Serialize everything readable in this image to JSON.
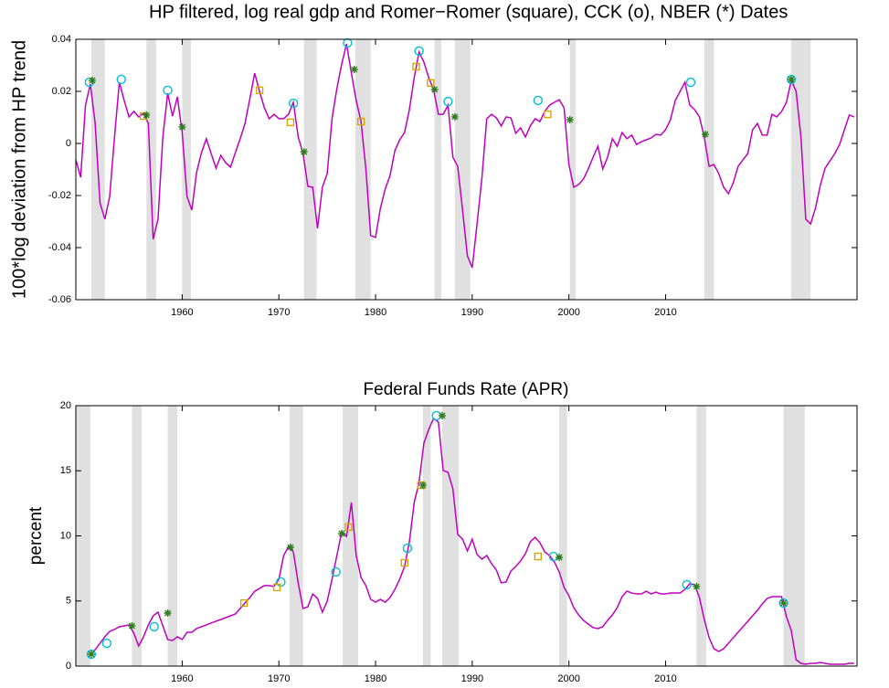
{
  "chart_data": [
    {
      "type": "line",
      "title": "HP filtered, log real gdp and Romer−Romer (square), CCK (o), NBER (*) Dates",
      "y_label": "100*log deviation from HP trend",
      "xlim": [
        1949.0,
        2029.8
      ],
      "xticks": [
        1960,
        1970,
        1980,
        1990,
        2000,
        2010
      ],
      "ylim": [
        -0.06,
        0.04
      ],
      "yticks": [
        -0.06,
        -0.04,
        -0.02,
        0,
        0.02,
        0.04
      ],
      "grid": false,
      "shade_color": "#e0e0e0",
      "shaded_spans": [
        [
          1950.6,
          1952.0
        ],
        [
          1956.3,
          1957.3
        ],
        [
          1960.0,
          1960.9
        ],
        [
          1972.6,
          1973.9
        ],
        [
          1977.9,
          1979.5
        ],
        [
          1986.1,
          1986.8
        ],
        [
          1988.2,
          1989.8
        ],
        [
          2000.1,
          2000.7
        ],
        [
          2014.0,
          2015.0
        ],
        [
          2023.0,
          2025.0
        ]
      ],
      "x": [
        1949,
        1949.5,
        1950,
        1950.5,
        1951,
        1951.5,
        1952,
        1952.5,
        1953,
        1953.5,
        1954,
        1954.5,
        1955,
        1955.5,
        1956,
        1956.5,
        1957,
        1957.5,
        1958,
        1958.5,
        1959,
        1959.5,
        1960,
        1960.5,
        1961,
        1961.5,
        1962,
        1962.5,
        1963,
        1963.5,
        1964,
        1964.5,
        1965,
        1965.5,
        1966,
        1966.5,
        1967,
        1967.5,
        1968,
        1968.5,
        1969,
        1969.5,
        1970,
        1970.5,
        1971,
        1971.5,
        1972,
        1972.5,
        1973,
        1973.5,
        1974,
        1974.5,
        1975,
        1975.5,
        1976,
        1976.5,
        1977,
        1977.5,
        1978,
        1978.5,
        1979,
        1979.5,
        1980,
        1980.5,
        1981,
        1981.5,
        1982,
        1982.5,
        1983,
        1983.5,
        1984,
        1984.5,
        1985,
        1985.5,
        1986,
        1986.5,
        1987,
        1987.5,
        1988,
        1988.5,
        1989,
        1989.5,
        1990,
        1990.5,
        1991,
        1991.5,
        1992,
        1992.5,
        1993,
        1993.5,
        1994,
        1994.5,
        1995,
        1995.5,
        1996,
        1996.5,
        1997,
        1997.5,
        1998,
        1998.5,
        1999,
        1999.5,
        2000,
        2000.5,
        2001,
        2001.5,
        2002,
        2002.5,
        2003,
        2003.5,
        2004,
        2004.5,
        2005,
        2005.5,
        2006,
        2006.5,
        2007,
        2007.5,
        2008,
        2008.5,
        2009,
        2009.5,
        2010,
        2010.5,
        2011,
        2011.5,
        2012,
        2012.5,
        2013,
        2013.5,
        2014,
        2014.5,
        2015,
        2015.5,
        2016,
        2016.5,
        2017,
        2017.5,
        2018,
        2018.5,
        2019,
        2019.5,
        2020,
        2020.5,
        2021,
        2021.5,
        2022,
        2022.5,
        2023,
        2023.5,
        2024,
        2024.5,
        2025,
        2025.5,
        2026,
        2026.5,
        2027,
        2027.5,
        2028,
        2028.5,
        2029,
        2029.5
      ],
      "series": [
        {
          "color": "#c000c0",
          "values": [
            -0.0063,
            -0.013,
            0.0147,
            0.0228,
            0.0077,
            -0.0228,
            -0.0291,
            -0.0204,
            0.0025,
            0.0235,
            0.0165,
            0.0102,
            0.0123,
            0.0102,
            0.0116,
            0.0077,
            -0.0368,
            -0.0291,
            0.0025,
            0.0193,
            0.0105,
            0.0179,
            0.0042,
            -0.0204,
            -0.0256,
            -0.0109,
            -0.0035,
            0.0018,
            -0.0039,
            -0.0095,
            -0.0046,
            -0.0074,
            -0.0091,
            -0.0035,
            0.0018,
            0.0077,
            0.0172,
            0.027,
            0.02,
            0.0137,
            0.0095,
            0.0112,
            0.0095,
            0.0095,
            0.0112,
            0.0158,
            0.0025,
            -0.0039,
            -0.0165,
            -0.0168,
            -0.0326,
            -0.0168,
            -0.0116,
            0.0095,
            0.0211,
            0.0305,
            0.0382,
            0.027,
            0.0165,
            0.0084,
            -0.0098,
            -0.0354,
            -0.0361,
            -0.0249,
            -0.0175,
            -0.0123,
            -0.0028,
            0.0014,
            0.0042,
            0.013,
            0.0253,
            0.0351,
            0.0312,
            0.0253,
            0.0207,
            0.0112,
            0.0112,
            0.0147,
            -0.0053,
            -0.0088,
            -0.0256,
            -0.0432,
            -0.0477,
            -0.0309,
            -0.0133,
            0.0095,
            0.0112,
            0.0098,
            0.0067,
            0.0102,
            0.0098,
            0.0039,
            0.006,
            0.0025,
            0.0067,
            0.0095,
            0.0084,
            0.0123,
            0.0147,
            0.0158,
            0.0168,
            0.0137,
            -0.0081,
            -0.0168,
            -0.0158,
            -0.0137,
            -0.0098,
            -0.0053,
            -0.0011,
            -0.0098,
            -0.0053,
            0.0018,
            -0.0011,
            0.0042,
            0.0018,
            0.0032,
            -0.0004,
            0.0007,
            0.0014,
            0.0021,
            0.0035,
            0.0032,
            0.0053,
            0.0091,
            0.0165,
            0.02,
            0.0235,
            0.0147,
            0.013,
            0.0102,
            0.0025,
            -0.0088,
            -0.0081,
            -0.0116,
            -0.0168,
            -0.0193,
            -0.0151,
            -0.0088,
            -0.0063,
            -0.0039,
            0.0053,
            0.0077,
            0.0032,
            0.0032,
            0.0112,
            0.0102,
            0.0123,
            0.0158,
            0.0242,
            0.02,
            0.0025,
            -0.0291,
            -0.0309,
            -0.0249,
            -0.0161,
            -0.0095,
            -0.0067,
            -0.0039,
            -0.0004,
            0.0053,
            0.0109,
            0.0102
          ]
        }
      ],
      "markers": [
        {
          "marker": "circle",
          "color": "#00bfd8",
          "x": [
            1950.4,
            1953.7,
            1958.5,
            1971.5,
            1977.1,
            1984.5,
            1987.5,
            1996.8,
            2012.6,
            2023.0
          ],
          "values": [
            0.0235,
            0.0246,
            0.0204,
            0.0154,
            0.0386,
            0.0355,
            0.0161,
            0.0165,
            0.0235,
            0.0246
          ]
        },
        {
          "marker": "square",
          "color": "#d4a800",
          "x": [
            1956.0,
            1968.0,
            1971.2,
            1978.5,
            1984.2,
            1985.7,
            1997.8
          ],
          "values": [
            0.0105,
            0.0204,
            0.0081,
            0.0084,
            0.0295,
            0.0232,
            0.0112
          ]
        },
        {
          "marker": "star",
          "color": "#2e7d1e",
          "x": [
            1950.7,
            1956.3,
            1960.0,
            1972.6,
            1977.8,
            1986.1,
            1988.2,
            2000.1,
            2014.1,
            2023.0
          ],
          "values": [
            0.0242,
            0.0109,
            0.0063,
            -0.0032,
            0.0284,
            0.0207,
            0.0102,
            0.0091,
            0.0035,
            0.0246
          ]
        }
      ]
    },
    {
      "type": "line",
      "title": "Federal Funds Rate (APR)",
      "y_label": "percent",
      "xlim": [
        1949.0,
        2029.8
      ],
      "xticks": [
        1960,
        1970,
        1980,
        1990,
        2000,
        2010
      ],
      "ylim": [
        0,
        20
      ],
      "yticks": [
        0,
        5,
        10,
        15,
        20
      ],
      "grid": false,
      "shade_color": "#e0e0e0",
      "shaded_spans": [
        [
          1949.0,
          1950.5
        ],
        [
          1954.8,
          1955.8
        ],
        [
          1958.5,
          1959.5
        ],
        [
          1971.1,
          1972.5
        ],
        [
          1976.6,
          1978.2
        ],
        [
          1984.9,
          1985.7
        ],
        [
          1986.9,
          1988.6
        ],
        [
          1999.0,
          1999.8
        ],
        [
          2013.2,
          2014.2
        ],
        [
          2022.2,
          2024.4
        ]
      ],
      "x": [
        1950.5,
        1951,
        1951.5,
        1952,
        1952.5,
        1953,
        1953.5,
        1954,
        1954.5,
        1955,
        1955.5,
        1956,
        1956.5,
        1957,
        1957.5,
        1958,
        1958.5,
        1959,
        1959.5,
        1960,
        1960.5,
        1961,
        1961.5,
        1962,
        1962.5,
        1963,
        1963.5,
        1964,
        1964.5,
        1965,
        1965.5,
        1966,
        1966.5,
        1967,
        1967.5,
        1968,
        1968.5,
        1969,
        1969.5,
        1970,
        1970.5,
        1971,
        1971.5,
        1972,
        1972.5,
        1973,
        1973.5,
        1974,
        1974.5,
        1975,
        1975.5,
        1976,
        1976.5,
        1977,
        1977.5,
        1978,
        1978.5,
        1979,
        1979.5,
        1980,
        1980.5,
        1981,
        1981.5,
        1982,
        1982.5,
        1983,
        1983.5,
        1984,
        1984.5,
        1985,
        1985.5,
        1986,
        1986.5,
        1987,
        1987.5,
        1988,
        1988.5,
        1989,
        1989.5,
        1990,
        1990.5,
        1991,
        1991.5,
        1992,
        1992.5,
        1993,
        1993.5,
        1994,
        1994.5,
        1995,
        1995.5,
        1996,
        1996.5,
        1997,
        1997.5,
        1998,
        1998.5,
        1999,
        1999.5,
        2000,
        2000.5,
        2001,
        2001.5,
        2002,
        2002.5,
        2003,
        2003.5,
        2004,
        2004.5,
        2005,
        2005.5,
        2006,
        2006.5,
        2007,
        2007.5,
        2008,
        2008.5,
        2009,
        2009.5,
        2010,
        2010.5,
        2011,
        2011.5,
        2012,
        2012.5,
        2013,
        2013.5,
        2014,
        2014.5,
        2015,
        2015.5,
        2016,
        2016.5,
        2017,
        2017.5,
        2018,
        2018.5,
        2019,
        2019.5,
        2020,
        2020.5,
        2021,
        2021.5,
        2022,
        2022.5,
        2023,
        2023.5,
        2024,
        2024.5,
        2025,
        2025.5,
        2026,
        2026.5,
        2027,
        2027.5,
        2028,
        2028.5,
        2029,
        2029.5
      ],
      "series": [
        {
          "color": "#c000c0",
          "values": [
            0.84,
            1.26,
            1.75,
            2.25,
            2.67,
            2.81,
            3.02,
            3.09,
            3.16,
            2.53,
            1.54,
            2.25,
            3.16,
            3.86,
            4.14,
            3.09,
            2.04,
            1.96,
            2.25,
            2.04,
            2.6,
            2.6,
            2.88,
            3.02,
            3.16,
            3.3,
            3.44,
            3.58,
            3.72,
            3.86,
            4.0,
            4.42,
            4.84,
            5.26,
            5.75,
            5.96,
            6.18,
            6.18,
            6.11,
            6.67,
            8.49,
            9.19,
            8.77,
            6.39,
            4.42,
            4.56,
            5.54,
            5.19,
            4.14,
            4.98,
            6.67,
            8.49,
            10.32,
            9.96,
            12.56,
            8.49,
            6.81,
            6.18,
            5.12,
            4.91,
            5.12,
            4.91,
            5.26,
            5.89,
            6.67,
            7.65,
            9.54,
            12.56,
            14.11,
            17.12,
            18.18,
            19.02,
            18.74,
            15.02,
            14.88,
            13.61,
            10.11,
            9.75,
            8.84,
            9.75,
            8.56,
            8.21,
            8.49,
            7.86,
            7.37,
            6.39,
            6.46,
            7.3,
            7.65,
            8.07,
            8.63,
            9.54,
            9.89,
            9.47,
            8.77,
            8.49,
            8.0,
            7.23,
            6.04,
            5.4,
            4.49,
            3.93,
            3.51,
            3.23,
            2.95,
            2.88,
            3.02,
            3.51,
            3.93,
            4.49,
            5.33,
            5.75,
            5.61,
            5.54,
            5.54,
            5.75,
            5.54,
            5.68,
            5.54,
            5.54,
            5.61,
            5.61,
            5.61,
            5.89,
            6.32,
            6.25,
            5.26,
            3.58,
            2.18,
            1.33,
            1.12,
            1.33,
            1.75,
            2.18,
            2.6,
            3.02,
            3.44,
            3.86,
            4.28,
            4.77,
            5.19,
            5.33,
            5.33,
            5.33,
            3.79,
            2.74,
            0.49,
            0.21,
            0.14,
            0.21,
            0.21,
            0.28,
            0.21,
            0.14,
            0.14,
            0.14,
            0.14,
            0.21,
            0.21
          ]
        }
      ],
      "markers": [
        {
          "marker": "circle",
          "color": "#00bfd8",
          "x": [
            1950.6,
            1952.2,
            1957.1,
            1970.2,
            1975.9,
            1983.3,
            1986.3,
            1998.4,
            2012.2,
            2022.2
          ],
          "values": [
            0.91,
            1.75,
            3.02,
            6.46,
            7.23,
            9.05,
            19.23,
            8.42,
            6.25,
            4.84
          ]
        },
        {
          "marker": "square",
          "color": "#d4a800",
          "x": [
            1966.4,
            1969.8,
            1977.2,
            1983.0,
            1984.7,
            1996.8
          ],
          "values": [
            4.84,
            6.04,
            10.67,
            7.93,
            13.89,
            8.42
          ]
        },
        {
          "marker": "star",
          "color": "#2e7d1e",
          "x": [
            1950.6,
            1954.8,
            1958.5,
            1971.2,
            1976.5,
            1984.9,
            1986.9,
            1999.0,
            2013.2,
            2022.2
          ],
          "values": [
            0.91,
            3.09,
            4.07,
            9.12,
            10.18,
            13.89,
            19.23,
            8.35,
            6.11,
            4.84
          ]
        }
      ]
    }
  ]
}
